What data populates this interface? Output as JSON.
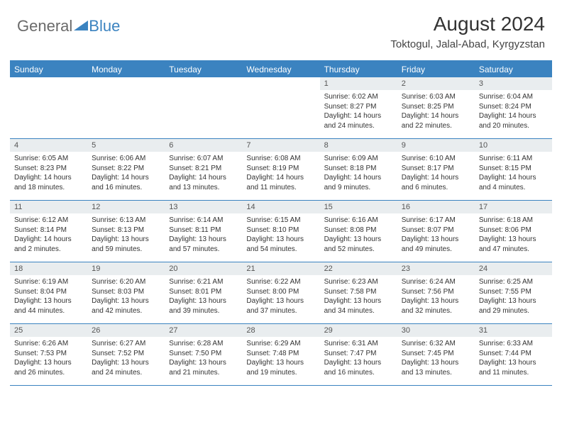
{
  "logo": {
    "general": "General",
    "blue": "Blue"
  },
  "title": "August 2024",
  "location": "Toktogul, Jalal-Abad, Kyrgyzstan",
  "colors": {
    "accent": "#3b83c0",
    "header_bg": "#e9edef",
    "text": "#333333",
    "logo_gray": "#6a6a6a"
  },
  "days_of_week": [
    "Sunday",
    "Monday",
    "Tuesday",
    "Wednesday",
    "Thursday",
    "Friday",
    "Saturday"
  ],
  "weeks": [
    [
      null,
      null,
      null,
      null,
      {
        "n": "1",
        "sr": "6:02 AM",
        "ss": "8:27 PM",
        "dl": "14 hours and 24 minutes."
      },
      {
        "n": "2",
        "sr": "6:03 AM",
        "ss": "8:25 PM",
        "dl": "14 hours and 22 minutes."
      },
      {
        "n": "3",
        "sr": "6:04 AM",
        "ss": "8:24 PM",
        "dl": "14 hours and 20 minutes."
      }
    ],
    [
      {
        "n": "4",
        "sr": "6:05 AM",
        "ss": "8:23 PM",
        "dl": "14 hours and 18 minutes."
      },
      {
        "n": "5",
        "sr": "6:06 AM",
        "ss": "8:22 PM",
        "dl": "14 hours and 16 minutes."
      },
      {
        "n": "6",
        "sr": "6:07 AM",
        "ss": "8:21 PM",
        "dl": "14 hours and 13 minutes."
      },
      {
        "n": "7",
        "sr": "6:08 AM",
        "ss": "8:19 PM",
        "dl": "14 hours and 11 minutes."
      },
      {
        "n": "8",
        "sr": "6:09 AM",
        "ss": "8:18 PM",
        "dl": "14 hours and 9 minutes."
      },
      {
        "n": "9",
        "sr": "6:10 AM",
        "ss": "8:17 PM",
        "dl": "14 hours and 6 minutes."
      },
      {
        "n": "10",
        "sr": "6:11 AM",
        "ss": "8:15 PM",
        "dl": "14 hours and 4 minutes."
      }
    ],
    [
      {
        "n": "11",
        "sr": "6:12 AM",
        "ss": "8:14 PM",
        "dl": "14 hours and 2 minutes."
      },
      {
        "n": "12",
        "sr": "6:13 AM",
        "ss": "8:13 PM",
        "dl": "13 hours and 59 minutes."
      },
      {
        "n": "13",
        "sr": "6:14 AM",
        "ss": "8:11 PM",
        "dl": "13 hours and 57 minutes."
      },
      {
        "n": "14",
        "sr": "6:15 AM",
        "ss": "8:10 PM",
        "dl": "13 hours and 54 minutes."
      },
      {
        "n": "15",
        "sr": "6:16 AM",
        "ss": "8:08 PM",
        "dl": "13 hours and 52 minutes."
      },
      {
        "n": "16",
        "sr": "6:17 AM",
        "ss": "8:07 PM",
        "dl": "13 hours and 49 minutes."
      },
      {
        "n": "17",
        "sr": "6:18 AM",
        "ss": "8:06 PM",
        "dl": "13 hours and 47 minutes."
      }
    ],
    [
      {
        "n": "18",
        "sr": "6:19 AM",
        "ss": "8:04 PM",
        "dl": "13 hours and 44 minutes."
      },
      {
        "n": "19",
        "sr": "6:20 AM",
        "ss": "8:03 PM",
        "dl": "13 hours and 42 minutes."
      },
      {
        "n": "20",
        "sr": "6:21 AM",
        "ss": "8:01 PM",
        "dl": "13 hours and 39 minutes."
      },
      {
        "n": "21",
        "sr": "6:22 AM",
        "ss": "8:00 PM",
        "dl": "13 hours and 37 minutes."
      },
      {
        "n": "22",
        "sr": "6:23 AM",
        "ss": "7:58 PM",
        "dl": "13 hours and 34 minutes."
      },
      {
        "n": "23",
        "sr": "6:24 AM",
        "ss": "7:56 PM",
        "dl": "13 hours and 32 minutes."
      },
      {
        "n": "24",
        "sr": "6:25 AM",
        "ss": "7:55 PM",
        "dl": "13 hours and 29 minutes."
      }
    ],
    [
      {
        "n": "25",
        "sr": "6:26 AM",
        "ss": "7:53 PM",
        "dl": "13 hours and 26 minutes."
      },
      {
        "n": "26",
        "sr": "6:27 AM",
        "ss": "7:52 PM",
        "dl": "13 hours and 24 minutes."
      },
      {
        "n": "27",
        "sr": "6:28 AM",
        "ss": "7:50 PM",
        "dl": "13 hours and 21 minutes."
      },
      {
        "n": "28",
        "sr": "6:29 AM",
        "ss": "7:48 PM",
        "dl": "13 hours and 19 minutes."
      },
      {
        "n": "29",
        "sr": "6:31 AM",
        "ss": "7:47 PM",
        "dl": "13 hours and 16 minutes."
      },
      {
        "n": "30",
        "sr": "6:32 AM",
        "ss": "7:45 PM",
        "dl": "13 hours and 13 minutes."
      },
      {
        "n": "31",
        "sr": "6:33 AM",
        "ss": "7:44 PM",
        "dl": "13 hours and 11 minutes."
      }
    ]
  ],
  "labels": {
    "sunrise": "Sunrise:",
    "sunset": "Sunset:",
    "daylight": "Daylight:"
  }
}
